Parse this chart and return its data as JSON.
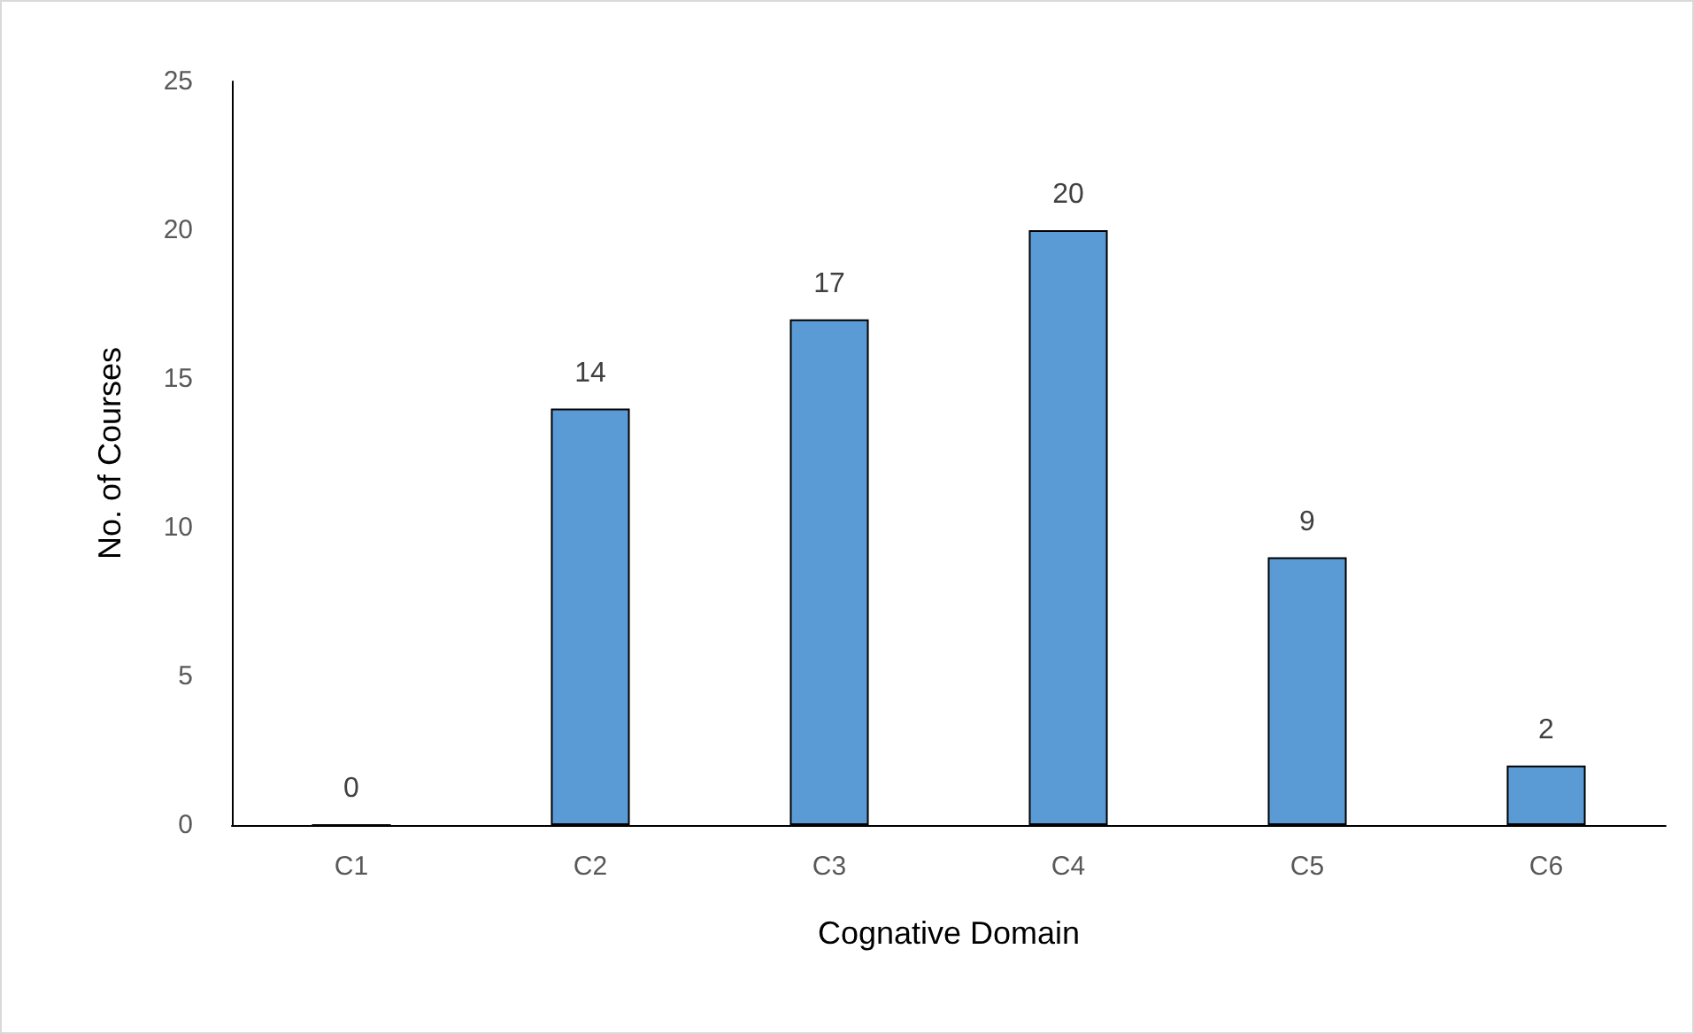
{
  "chart_data": {
    "type": "bar",
    "xlabel": "Cognative Domain",
    "ylabel": "No. of Courses",
    "categories": [
      "C1",
      "C2",
      "C3",
      "C4",
      "C5",
      "C6"
    ],
    "values": [
      0,
      14,
      17,
      20,
      9,
      2
    ],
    "color": "#5b9bd5",
    "ylim": [
      0,
      25
    ],
    "yticks": [
      0,
      5,
      10,
      15,
      20,
      25
    ],
    "grid": false,
    "data_labels": true
  }
}
